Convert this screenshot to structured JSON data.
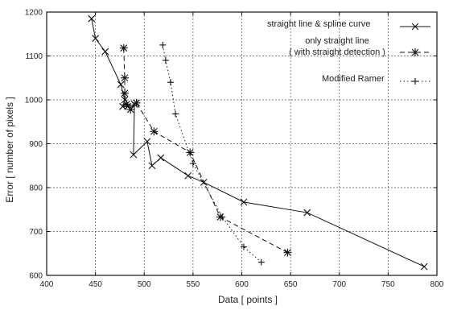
{
  "chart_data": {
    "type": "line",
    "xlabel": "Data [ points ]",
    "ylabel": "Error [ number of pixels ]",
    "xlim": [
      400,
      800
    ],
    "ylim": [
      600,
      1200
    ],
    "xticks": [
      400,
      450,
      500,
      550,
      600,
      650,
      700,
      750,
      800
    ],
    "yticks": [
      600,
      700,
      800,
      900,
      1000,
      1100,
      1200
    ],
    "grid": true,
    "legend_position": "top-right",
    "series": [
      {
        "name": "straight line & spline curve",
        "line_style": "solid",
        "marker": "x",
        "points": [
          [
            446,
            1185
          ],
          [
            450,
            1140
          ],
          [
            460,
            1110
          ],
          [
            476,
            1035
          ],
          [
            480,
            1000
          ],
          [
            478,
            985
          ],
          [
            483,
            985
          ],
          [
            490,
            990
          ],
          [
            489,
            875
          ],
          [
            503,
            905
          ],
          [
            508,
            850
          ],
          [
            517,
            868
          ],
          [
            545,
            827
          ],
          [
            561,
            812
          ],
          [
            602,
            767
          ],
          [
            667,
            743
          ],
          [
            787,
            620
          ]
        ]
      },
      {
        "name": "only straight line\n( with straight detection )",
        "line_style": "dashed",
        "marker": "asterisk",
        "points": [
          [
            479,
            1118
          ],
          [
            480,
            1050
          ],
          [
            480,
            1015
          ],
          [
            482,
            990
          ],
          [
            486,
            978
          ],
          [
            492,
            993
          ],
          [
            510,
            928
          ],
          [
            547,
            880
          ],
          [
            578,
            733
          ],
          [
            647,
            652
          ]
        ]
      },
      {
        "name": "Modified Ramer",
        "line_style": "dotted",
        "marker": "plus",
        "points": [
          [
            519,
            1125
          ],
          [
            522,
            1090
          ],
          [
            527,
            1040
          ],
          [
            532,
            968
          ],
          [
            550,
            855
          ],
          [
            580,
            733
          ],
          [
            602,
            665
          ],
          [
            620,
            630
          ]
        ]
      }
    ]
  }
}
